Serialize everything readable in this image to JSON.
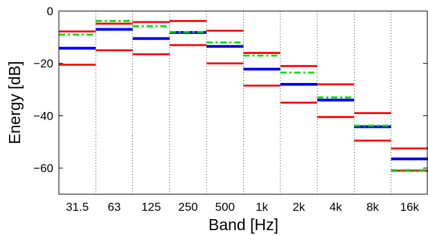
{
  "chart_data": {
    "type": "step",
    "title": "",
    "xlabel": "Band [Hz]",
    "ylabel": "Energy [dB]",
    "categories": [
      "31.5",
      "63",
      "125",
      "250",
      "500",
      "1k",
      "2k",
      "4k",
      "8k",
      "16k"
    ],
    "ylim": [
      -70,
      0
    ],
    "yticks": [
      0,
      -20,
      -40,
      -60
    ],
    "grid": "vertical dotted lines between bands",
    "legend": "none",
    "series": [
      {
        "color": "#ff0000",
        "style": "solid",
        "values": [
          -7.8,
          -4.8,
          -4.2,
          -3.8,
          -7.5,
          -16.0,
          -21.0,
          -28.0,
          -39.0,
          -52.5
        ]
      },
      {
        "color": "#ff0000",
        "style": "solid",
        "values": [
          -20.5,
          -15.0,
          -16.5,
          -13.0,
          -20.0,
          -28.5,
          -35.0,
          -40.5,
          -49.5,
          -61.0
        ]
      },
      {
        "color": "#0000ff",
        "style": "solid-thick",
        "values": [
          -14.2,
          -7.0,
          -10.5,
          -8.2,
          -13.5,
          -22.2,
          -28.0,
          -34.0,
          -44.2,
          -56.5
        ]
      },
      {
        "color": "#00dd00",
        "style": "dash-dot",
        "values": [
          -9.0,
          -3.8,
          -5.8,
          -8.0,
          -12.0,
          -17.0,
          -23.5,
          -33.0,
          -43.8,
          -60.8
        ]
      }
    ]
  }
}
